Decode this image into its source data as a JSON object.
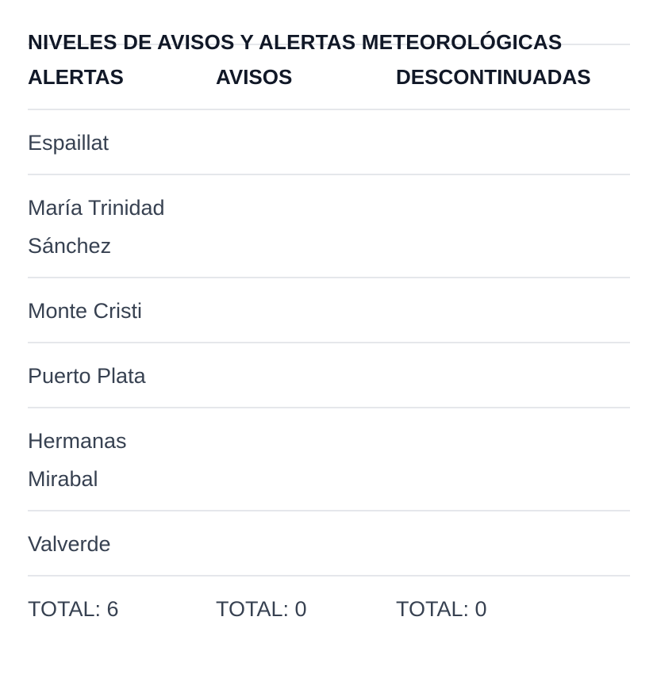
{
  "title": "NIVELES DE AVISOS Y ALERTAS METEOROLÓGICAS",
  "columns": [
    "ALERTAS",
    "AVISOS",
    "DESCONTINUADAS"
  ],
  "rows": [
    [
      "Espaillat",
      "",
      ""
    ],
    [
      "María Trinidad Sánchez",
      "",
      ""
    ],
    [
      "Monte Cristi",
      "",
      ""
    ],
    [
      "Puerto Plata",
      "",
      ""
    ],
    [
      "Hermanas Mirabal",
      "",
      ""
    ],
    [
      "Valverde",
      "",
      ""
    ]
  ],
  "totals": [
    "TOTAL: 6",
    "TOTAL: 0",
    "TOTAL: 0"
  ],
  "colors": {
    "heading": "#111827",
    "text": "#374151",
    "divider": "#e5e7eb"
  }
}
